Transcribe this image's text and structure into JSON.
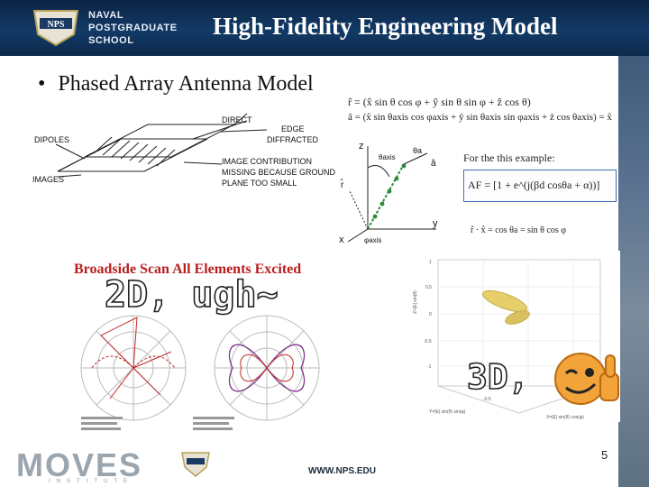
{
  "header": {
    "title": "High-Fidelity Engineering Model",
    "logo_text": "NPS",
    "school_name": [
      "NAVAL",
      "POSTGRADUATE",
      "SCHOOL"
    ]
  },
  "bullet": {
    "text": "Phased Array Antenna Model"
  },
  "dipole_diagram": {
    "labels": {
      "direct": "DIRECT",
      "edge": "EDGE",
      "diffracted": "DIFFRACTED",
      "dipoles": "DIPOLES",
      "images": "IMAGES",
      "image_note": [
        "IMAGE CONTRIBUTION",
        "MISSING BECAUSE GROUND",
        "PLANE TOO SMALL"
      ]
    }
  },
  "geometry": {
    "eq_r": "r̂ = (x̂ sin θ cos φ + ŷ sin θ sin φ + ẑ cos θ)",
    "eq_a": "â = (x̂ sin θaxis cos φaxis + ŷ sin θaxis sin φaxis + ẑ cos θaxis) = x̂",
    "axis_z": "z",
    "axis_y": "y",
    "axis_x": "x",
    "theta_axis": "θaxis",
    "theta_a": "θa",
    "a_hat": "â",
    "r_hat": "r̂",
    "phi_axis": "φaxis",
    "example_label": "For the this example:",
    "af_eq": "AF = [1 + e^(j(βd cosθa + α))]",
    "dot_eq": "r̂ · x̂ = cos θa = sin θ cos φ"
  },
  "plots2d": {
    "heading": "Broadside Scan All Elements Excited",
    "annotation": "2D, ugh~"
  },
  "plot3d": {
    "z_label": "Z=|E| sin(θ)",
    "y_label": "Y=|E| sin(θ) sin(φ)",
    "x_label": "X=|E| sin(θ) cos(φ)",
    "annotation": "3D,",
    "y_ticks": [
      "1",
      "0.5",
      "0",
      "-0.5",
      "-1"
    ],
    "x_tick": "-0.5"
  },
  "footer": {
    "moves": "MOVES",
    "institute": "INSTITUTE",
    "url": "WWW.NPS.EDU",
    "page_number": "5"
  },
  "colors": {
    "header_bg": "#123a66",
    "broadside_red": "#b81e1e",
    "array_green": "#2d8a3a",
    "pattern_red": "#c22a2a",
    "pattern_purple": "#7a2a8a",
    "lobe_yellow": "#e6cf6a"
  }
}
